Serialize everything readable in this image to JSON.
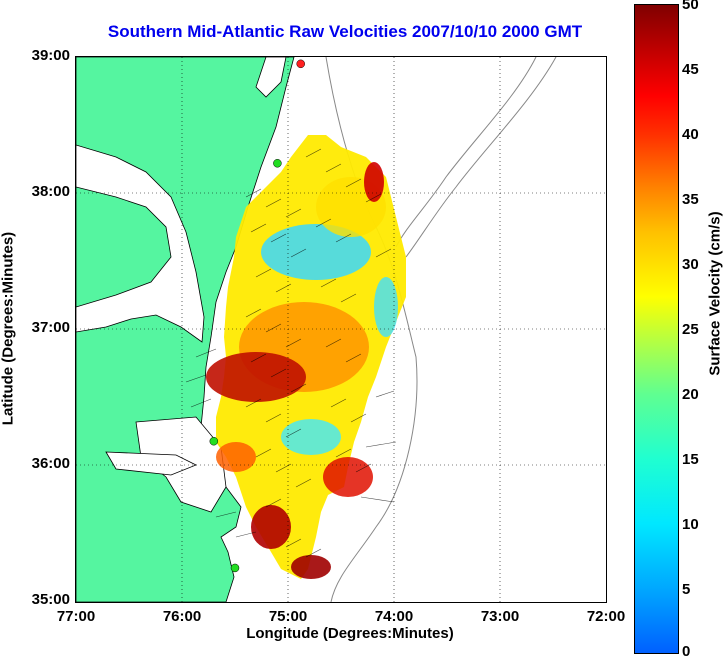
{
  "title": "Southern Mid-Atlantic Raw Velocities 2007/10/10 2000 GMT",
  "axes": {
    "xlabel": "Longitude (Degrees:Minutes)",
    "ylabel": "Latitude (Degrees:Minutes)",
    "xticks": [
      "77:00",
      "76:00",
      "75:00",
      "74:00",
      "73:00",
      "72:00"
    ],
    "yticks": [
      "39:00",
      "38:00",
      "37:00",
      "36:00",
      "35:00"
    ],
    "xlim": [
      -77,
      -72
    ],
    "ylim": [
      35,
      39
    ]
  },
  "colorbar": {
    "label": "Surface Velocity (cm/s)",
    "ticks": [
      "50",
      "45",
      "40",
      "35",
      "30",
      "25",
      "20",
      "15",
      "10",
      "5",
      "0"
    ],
    "range": [
      0,
      50
    ],
    "colors": {
      "low": "#0060ff",
      "mid": "#ffff00",
      "high": "#800000"
    }
  },
  "colors": {
    "land": "#55f5a0",
    "water": "#ffffff",
    "title": "#0000ee",
    "station": "#22dd22"
  },
  "stations": [
    {
      "lon": -74.88,
      "lat": 38.95,
      "color": "#ff2020"
    },
    {
      "lon": -75.1,
      "lat": 38.22,
      "color": "#22dd22"
    },
    {
      "lon": -75.7,
      "lat": 36.18,
      "color": "#22dd22"
    },
    {
      "lon": -75.5,
      "lat": 35.25,
      "color": "#22dd22"
    }
  ]
}
